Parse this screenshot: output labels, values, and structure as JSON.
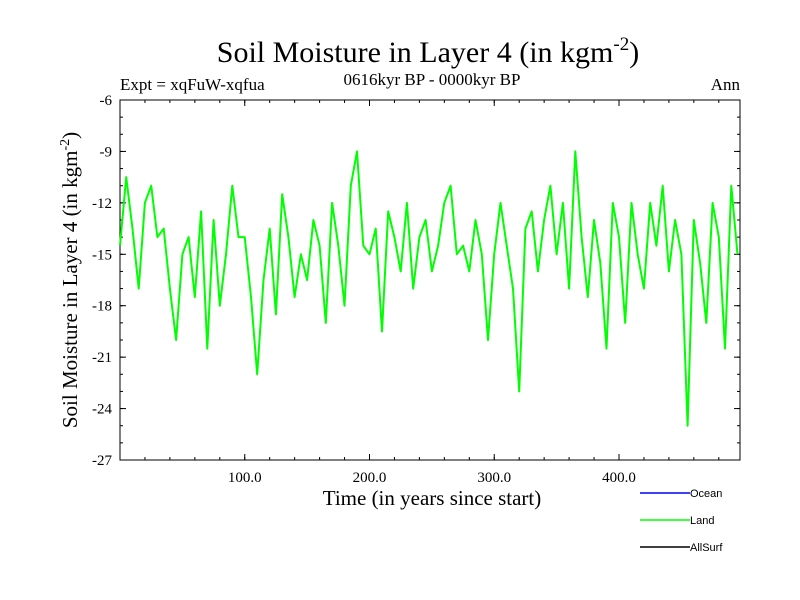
{
  "chart_data": {
    "type": "line",
    "title_main": "Soil Moisture in Layer 4 (in kgm",
    "title_sup": "-2",
    "title_close": ")",
    "experiment": "Expt = xqFuW-xqfua",
    "period": "0616kyr BP - 0000kyr BP",
    "season": "Ann",
    "xlabel": "Time (in years since start)",
    "ylabel_main": "Soil Moisture in Layer 4 (in kgm",
    "ylabel_sup": "-2",
    "ylabel_close": ")",
    "xlim": [
      0,
      497
    ],
    "ylim": [
      -27,
      -6
    ],
    "x_ticks": [
      100,
      200,
      300,
      400
    ],
    "x_tick_labels": [
      "100.0",
      "200.0",
      "300.0",
      "400.0"
    ],
    "y_ticks": [
      -6,
      -9,
      -12,
      -15,
      -18,
      -21,
      -24,
      -27
    ],
    "y_tick_labels": [
      "-6",
      "-9",
      "-12",
      "-15",
      "-18",
      "-21",
      "-24",
      "-27"
    ],
    "legend": [
      {
        "name": "Ocean",
        "color": "#0000ff"
      },
      {
        "name": "Land",
        "color": "#00ff00"
      },
      {
        "name": "AllSurf",
        "color": "#000000"
      }
    ],
    "series": [
      {
        "name": "Land",
        "color": "#00ff00",
        "x": [
          0,
          5,
          10,
          15,
          20,
          25,
          30,
          35,
          40,
          45,
          50,
          55,
          60,
          65,
          70,
          75,
          80,
          85,
          90,
          95,
          100,
          105,
          110,
          115,
          120,
          125,
          130,
          135,
          140,
          145,
          150,
          155,
          160,
          165,
          170,
          175,
          180,
          185,
          190,
          195,
          200,
          205,
          210,
          215,
          220,
          225,
          230,
          235,
          240,
          245,
          250,
          255,
          260,
          265,
          270,
          275,
          280,
          285,
          290,
          295,
          300,
          305,
          310,
          315,
          320,
          325,
          330,
          335,
          340,
          345,
          350,
          355,
          360,
          365,
          370,
          375,
          380,
          385,
          390,
          395,
          400,
          405,
          410,
          415,
          420,
          425,
          430,
          435,
          440,
          445,
          450,
          455,
          460,
          465,
          470,
          475,
          480,
          485,
          490,
          495
        ],
        "values": [
          -14.5,
          -10.5,
          -13.5,
          -17,
          -12,
          -11,
          -14,
          -13.5,
          -17,
          -20,
          -15,
          -14,
          -17.5,
          -12.5,
          -20.5,
          -13,
          -18,
          -15,
          -11,
          -14,
          -14,
          -17.5,
          -22,
          -16.5,
          -13.5,
          -18.5,
          -11.5,
          -14,
          -17.5,
          -15,
          -16.5,
          -13,
          -14.5,
          -19,
          -12,
          -14.5,
          -18,
          -11,
          -9,
          -14.5,
          -15,
          -13.5,
          -19.5,
          -12.5,
          -14,
          -16,
          -12,
          -17,
          -14,
          -13,
          -16,
          -14.5,
          -12,
          -11,
          -15,
          -14.5,
          -16,
          -13,
          -15,
          -20,
          -15,
          -12,
          -14.5,
          -17,
          -23,
          -13.5,
          -12.5,
          -16,
          -13,
          -11,
          -15,
          -12,
          -17,
          -9,
          -14,
          -17.5,
          -13,
          -15.5,
          -20.5,
          -12,
          -14,
          -19,
          -12,
          -15,
          -17,
          -12,
          -14.5,
          -11,
          -16,
          -13,
          -15,
          -25,
          -13,
          -15.5,
          -19,
          -12,
          -14,
          -20.5,
          -11,
          -15
        ]
      }
    ]
  }
}
